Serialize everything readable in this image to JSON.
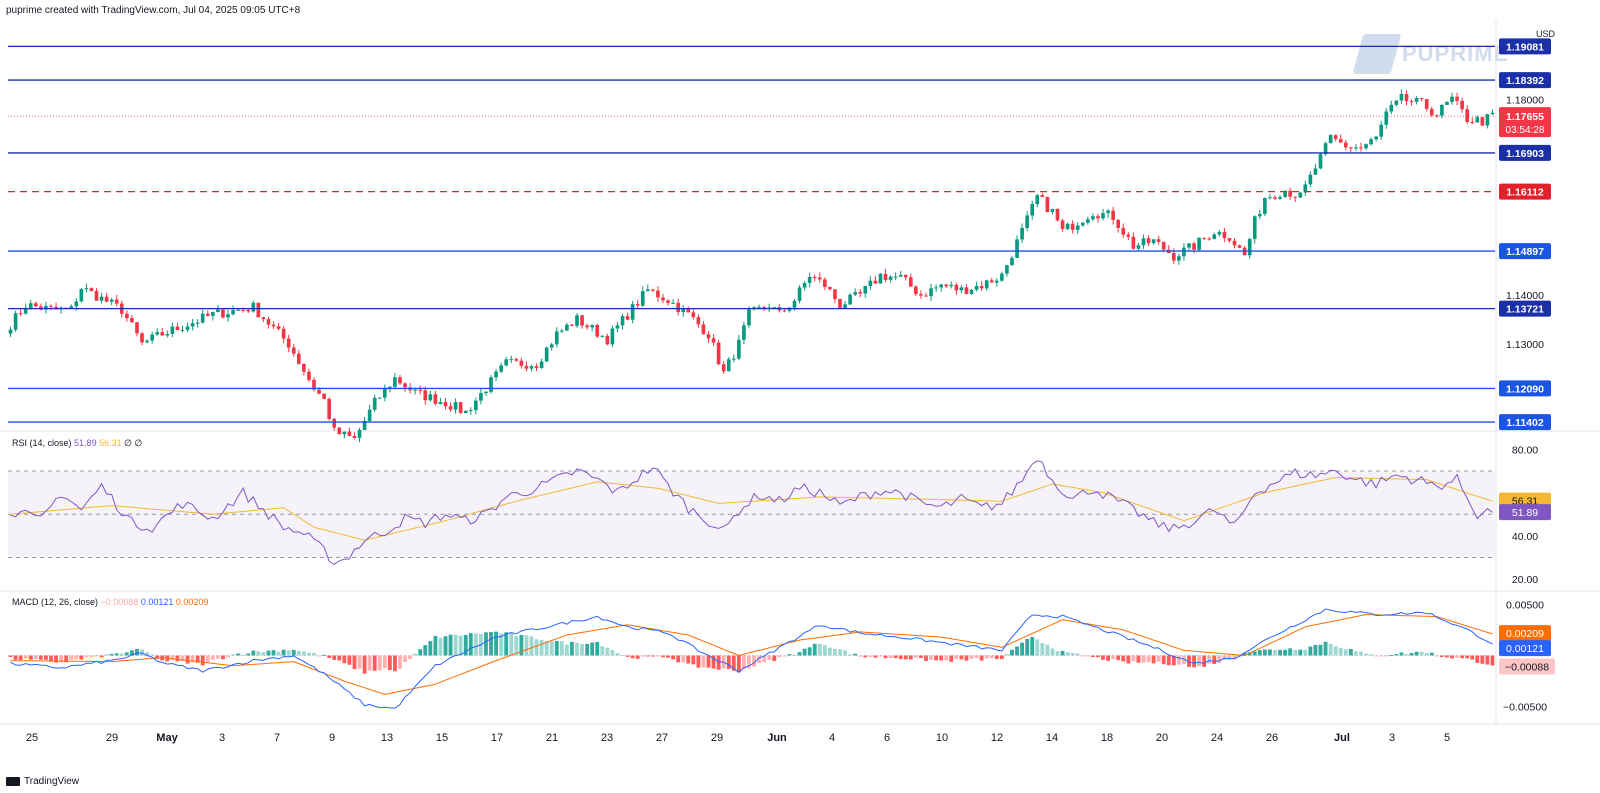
{
  "header": {
    "credit": "puprime created with TradingView.com, Jul 04, 2025 09:05 UTC+8"
  },
  "watermark": {
    "text": "PUPRIME"
  },
  "footer": {
    "brand": "TradingView"
  },
  "price_axis": {
    "currency": "USD",
    "ticks": [
      "1.18000",
      "1.14000",
      "1.13000"
    ],
    "levels": [
      {
        "label": "1.19081",
        "value": 1.19081,
        "style": "solid",
        "color": "#1a2fa8"
      },
      {
        "label": "1.18392",
        "value": 1.18392,
        "style": "solid",
        "color": "#1a2fa8"
      },
      {
        "label": "1.16903",
        "value": 1.16903,
        "style": "solid",
        "color": "#1a2fa8"
      },
      {
        "label": "1.16112",
        "value": 1.16112,
        "style": "dashed",
        "color": "#e0202b"
      },
      {
        "label": "1.14897",
        "value": 1.14897,
        "style": "solid",
        "color": "#1a55e3"
      },
      {
        "label": "1.13721",
        "value": 1.13721,
        "style": "solid",
        "color": "#1a2fa8"
      },
      {
        "label": "1.12090",
        "value": 1.1209,
        "style": "solid",
        "color": "#1a55e3"
      },
      {
        "label": "1.11402",
        "value": 1.11402,
        "style": "solid",
        "color": "#1a55e3"
      }
    ],
    "last_price": {
      "label": "1.17655",
      "value": 1.17655,
      "countdown": "03:54:28",
      "color": "#f23645"
    }
  },
  "rsi": {
    "label": "RSI (14, close)",
    "rsi_value": "51.89",
    "ma_value": "56.31",
    "extra": "∅ ∅",
    "ticks": [
      "80.00",
      "40.00",
      "20.00"
    ],
    "badge_ma": "56.31",
    "badge_rsi": "51.89"
  },
  "macd": {
    "label": "MACD (12, 26, close)",
    "hist_value": "−0.00088",
    "macd_value": "0.00121",
    "signal_value": "0.00209",
    "ticks": [
      "0.00500",
      "−0.00500"
    ],
    "badge_signal": "0.00209",
    "badge_macd": "0.00121",
    "badge_hist": "−0.00088"
  },
  "time_axis": [
    "25",
    "29",
    "May",
    "3",
    "7",
    "9",
    "13",
    "15",
    "17",
    "21",
    "23",
    "27",
    "29",
    "Jun",
    "4",
    "6",
    "10",
    "12",
    "14",
    "18",
    "20",
    "24",
    "26",
    "Jul",
    "3",
    "5"
  ],
  "colors": {
    "up": "#089981",
    "down": "#f23645",
    "rsi": "#7e57c2",
    "rsi_ma": "#f5b833",
    "macd": "#2962ff",
    "signal": "#ff6d00",
    "hist_up": "#26a69a",
    "hist_down": "#ff5252"
  },
  "chart_data": [
    {
      "type": "candlestick",
      "title": "",
      "x_range": [
        "2025-04-24",
        "2025-07-04"
      ],
      "ylim": [
        1.1124,
        1.1962
      ],
      "price_keypoints": [
        [
          0,
          1.134
        ],
        [
          3,
          1.138
        ],
        [
          8,
          1.137
        ],
        [
          12,
          1.137
        ],
        [
          14,
          1.1415
        ],
        [
          22,
          1.137
        ],
        [
          26,
          1.13
        ],
        [
          30,
          1.132
        ],
        [
          40,
          1.136
        ],
        [
          48,
          1.1375
        ],
        [
          55,
          1.13
        ],
        [
          60,
          1.121
        ],
        [
          62,
          1.1185
        ],
        [
          64,
          1.112
        ],
        [
          68,
          1.1105
        ],
        [
          72,
          1.118
        ],
        [
          76,
          1.123
        ],
        [
          80,
          1.12
        ],
        [
          86,
          1.118
        ],
        [
          90,
          1.116
        ],
        [
          94,
          1.121
        ],
        [
          98,
          1.126
        ],
        [
          104,
          1.126
        ],
        [
          108,
          1.132
        ],
        [
          112,
          1.135
        ],
        [
          118,
          1.131
        ],
        [
          122,
          1.136
        ],
        [
          126,
          1.141
        ],
        [
          130,
          1.139
        ],
        [
          134,
          1.136
        ],
        [
          138,
          1.132
        ],
        [
          141,
          1.124
        ],
        [
          144,
          1.13
        ],
        [
          146,
          1.136
        ],
        [
          150,
          1.138
        ],
        [
          152,
          1.136
        ],
        [
          155,
          1.139
        ],
        [
          158,
          1.144
        ],
        [
          161,
          1.142
        ],
        [
          164,
          1.138
        ],
        [
          168,
          1.14
        ],
        [
          172,
          1.144
        ],
        [
          176,
          1.1435
        ],
        [
          180,
          1.14
        ],
        [
          184,
          1.142
        ],
        [
          188,
          1.141
        ],
        [
          192,
          1.142
        ],
        [
          196,
          1.144
        ],
        [
          200,
          1.153
        ],
        [
          203,
          1.16
        ],
        [
          206,
          1.157
        ],
        [
          208,
          1.153
        ],
        [
          211,
          1.155
        ],
        [
          214,
          1.157
        ],
        [
          218,
          1.156
        ],
        [
          222,
          1.15
        ],
        [
          226,
          1.151
        ],
        [
          230,
          1.148
        ],
        [
          234,
          1.15
        ],
        [
          238,
          1.153
        ],
        [
          241,
          1.152
        ],
        [
          244,
          1.148
        ],
        [
          246,
          1.155
        ],
        [
          248,
          1.16
        ],
        [
          252,
          1.1615
        ],
        [
          255,
          1.16
        ],
        [
          258,
          1.166
        ],
        [
          261,
          1.172
        ],
        [
          264,
          1.1705
        ],
        [
          267,
          1.17
        ],
        [
          270,
          1.172
        ],
        [
          272,
          1.177
        ],
        [
          275,
          1.18
        ],
        [
          279,
          1.179
        ],
        [
          282,
          1.177
        ],
        [
          285,
          1.18
        ],
        [
          288,
          1.176
        ],
        [
          291,
          1.1755
        ],
        [
          293,
          1.1766
        ]
      ]
    },
    {
      "type": "line",
      "title": "RSI (14, close)",
      "ylim": [
        15,
        88
      ],
      "series": [
        {
          "name": "RSI",
          "keypoints": [
            [
              0,
              52
            ],
            [
              6,
              47
            ],
            [
              10,
              60
            ],
            [
              14,
              52
            ],
            [
              18,
              63
            ],
            [
              24,
              46
            ],
            [
              28,
              44
            ],
            [
              34,
              55
            ],
            [
              40,
              48
            ],
            [
              46,
              60
            ],
            [
              50,
              52
            ],
            [
              54,
              44
            ],
            [
              58,
              41
            ],
            [
              62,
              33
            ],
            [
              64,
              28
            ],
            [
              66,
              29
            ],
            [
              70,
              38
            ],
            [
              74,
              42
            ],
            [
              78,
              48
            ],
            [
              82,
              46
            ],
            [
              86,
              50
            ],
            [
              90,
              47
            ],
            [
              94,
              50
            ],
            [
              98,
              58
            ],
            [
              104,
              62
            ],
            [
              108,
              66
            ],
            [
              112,
              70
            ],
            [
              116,
              66
            ],
            [
              120,
              60
            ],
            [
              124,
              67
            ],
            [
              127,
              72
            ],
            [
              130,
              63
            ],
            [
              134,
              53
            ],
            [
              138,
              47
            ],
            [
              141,
              42
            ],
            [
              144,
              52
            ],
            [
              148,
              59
            ],
            [
              152,
              56
            ],
            [
              156,
              62
            ],
            [
              160,
              60
            ],
            [
              164,
              54
            ],
            [
              168,
              58
            ],
            [
              172,
              61
            ],
            [
              176,
              60
            ],
            [
              180,
              55
            ],
            [
              184,
              53
            ],
            [
              188,
              57
            ],
            [
              192,
              53
            ],
            [
              196,
              55
            ],
            [
              200,
              66
            ],
            [
              203,
              77
            ],
            [
              206,
              66
            ],
            [
              210,
              57
            ],
            [
              214,
              62
            ],
            [
              218,
              57
            ],
            [
              222,
              52
            ],
            [
              226,
              46
            ],
            [
              230,
              43
            ],
            [
              234,
              47
            ],
            [
              238,
              52
            ],
            [
              242,
              44
            ],
            [
              246,
              60
            ],
            [
              250,
              65
            ],
            [
              254,
              69
            ],
            [
              258,
              68
            ],
            [
              262,
              70
            ],
            [
              266,
              66
            ],
            [
              270,
              64
            ],
            [
              274,
              68
            ],
            [
              278,
              66
            ],
            [
              282,
              63
            ],
            [
              286,
              66
            ],
            [
              290,
              50
            ],
            [
              293,
              52
            ]
          ]
        },
        {
          "name": "RSI MA",
          "keypoints": [
            [
              0,
              50
            ],
            [
              20,
              54
            ],
            [
              40,
              50
            ],
            [
              54,
              53
            ],
            [
              60,
              44
            ],
            [
              70,
              38
            ],
            [
              86,
              47
            ],
            [
              100,
              56
            ],
            [
              116,
              65
            ],
            [
              128,
              62
            ],
            [
              140,
              55
            ],
            [
              160,
              58
            ],
            [
              180,
              57
            ],
            [
              196,
              56
            ],
            [
              206,
              64
            ],
            [
              216,
              60
            ],
            [
              232,
              47
            ],
            [
              248,
              60
            ],
            [
              262,
              67
            ],
            [
              280,
              66
            ],
            [
              293,
              56
            ]
          ]
        }
      ]
    },
    {
      "type": "line",
      "title": "MACD (12, 26, close)",
      "ylim": [
        -0.0063,
        0.0062
      ],
      "series": [
        {
          "name": "MACD",
          "keypoints": [
            [
              0,
              -0.0008
            ],
            [
              10,
              -0.0012
            ],
            [
              20,
              -0.0005
            ],
            [
              26,
              0.0002
            ],
            [
              30,
              -0.0007
            ],
            [
              38,
              -0.0015
            ],
            [
              48,
              -0.0005
            ],
            [
              56,
              0.0
            ],
            [
              62,
              -0.0018
            ],
            [
              70,
              -0.0048
            ],
            [
              76,
              -0.0052
            ],
            [
              84,
              -0.001
            ],
            [
              96,
              0.0018
            ],
            [
              108,
              0.003
            ],
            [
              116,
              0.0038
            ],
            [
              122,
              0.0028
            ],
            [
              130,
              0.0022
            ],
            [
              136,
              0.0005
            ],
            [
              144,
              -0.0015
            ],
            [
              150,
              0.0002
            ],
            [
              160,
              0.003
            ],
            [
              168,
              0.0022
            ],
            [
              176,
              0.0018
            ],
            [
              188,
              0.001
            ],
            [
              196,
              0.0005
            ],
            [
              202,
              0.004
            ],
            [
              208,
              0.0038
            ],
            [
              216,
              0.0025
            ],
            [
              226,
              0.0008
            ],
            [
              234,
              -0.0008
            ],
            [
              242,
              -0.0002
            ],
            [
              250,
              0.002
            ],
            [
              260,
              0.0045
            ],
            [
              270,
              0.004
            ],
            [
              280,
              0.0042
            ],
            [
              288,
              0.0025
            ],
            [
              293,
              0.0012
            ]
          ]
        },
        {
          "name": "Signal",
          "keypoints": [
            [
              0,
              -0.0005
            ],
            [
              20,
              -0.0006
            ],
            [
              30,
              -0.0002
            ],
            [
              44,
              -0.001
            ],
            [
              56,
              -0.0006
            ],
            [
              66,
              -0.0025
            ],
            [
              74,
              -0.0038
            ],
            [
              84,
              -0.0028
            ],
            [
              96,
              -0.0005
            ],
            [
              110,
              0.002
            ],
            [
              122,
              0.003
            ],
            [
              134,
              0.002
            ],
            [
              144,
              0.0
            ],
            [
              156,
              0.0015
            ],
            [
              168,
              0.0023
            ],
            [
              184,
              0.0018
            ],
            [
              196,
              0.0008
            ],
            [
              208,
              0.0035
            ],
            [
              220,
              0.0025
            ],
            [
              232,
              0.0005
            ],
            [
              244,
              0.0
            ],
            [
              256,
              0.0028
            ],
            [
              268,
              0.004
            ],
            [
              282,
              0.0038
            ],
            [
              293,
              0.0021
            ]
          ]
        }
      ]
    }
  ]
}
